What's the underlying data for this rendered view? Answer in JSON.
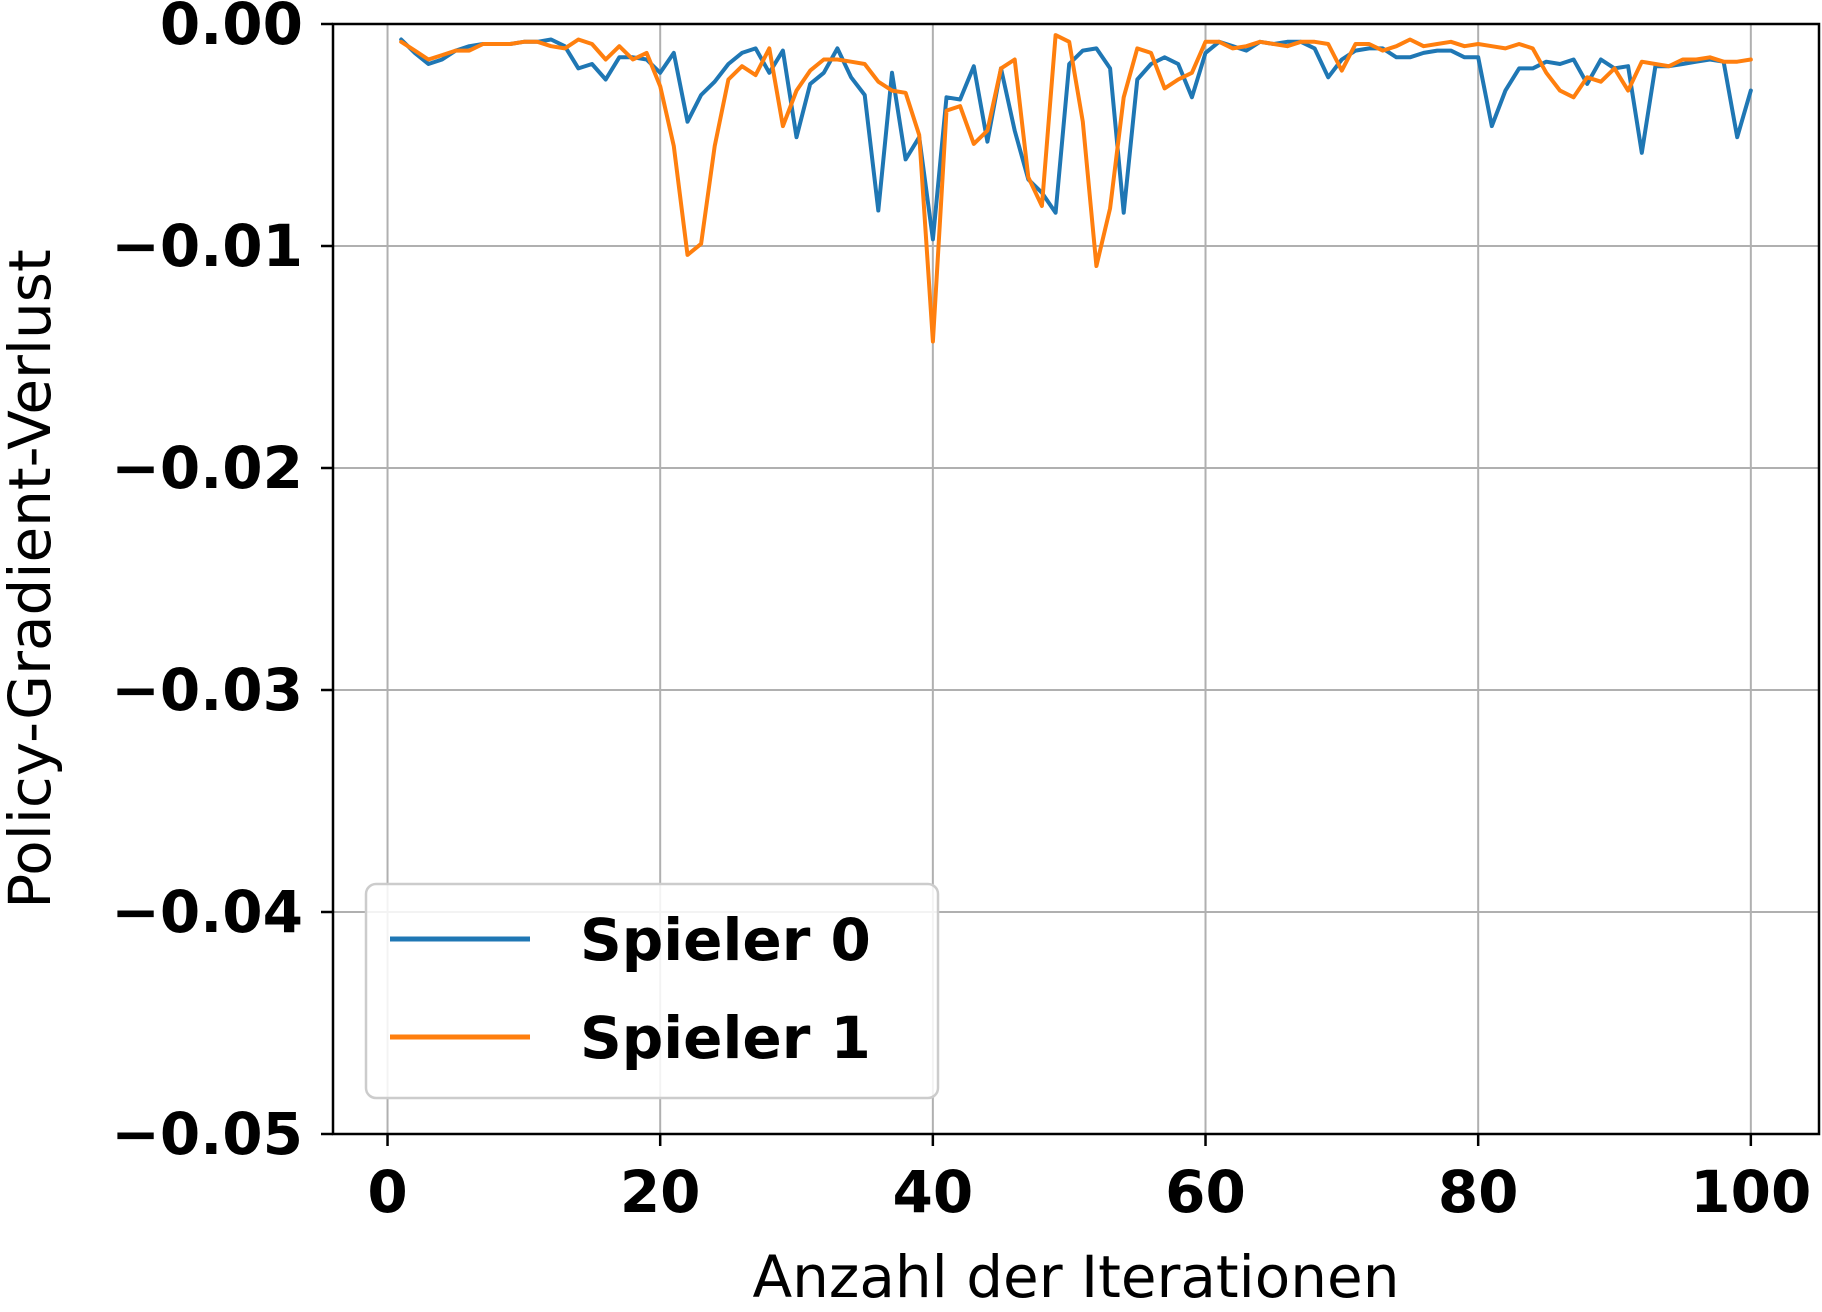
{
  "chart_data": {
    "type": "line",
    "xlabel": "Anzahl der Iterationen",
    "ylabel": "Policy-Gradient-Verlust",
    "xlim": [
      -4,
      105
    ],
    "ylim": [
      -0.05,
      0.0
    ],
    "x_ticks": [
      0,
      20,
      40,
      60,
      80,
      100
    ],
    "x_tick_labels": [
      "0",
      "20",
      "40",
      "60",
      "80",
      "100"
    ],
    "y_ticks": [
      0.0,
      -0.01,
      -0.02,
      -0.03,
      -0.04,
      -0.05
    ],
    "y_tick_labels": [
      "0.00",
      "−0.01",
      "−0.02",
      "−0.03",
      "−0.04",
      "−0.05"
    ],
    "grid": true,
    "legend_position": "lower-left",
    "colors": {
      "series0": "#1f77b4",
      "series1": "#ff7f0e"
    },
    "x": [
      1,
      2,
      3,
      4,
      5,
      6,
      7,
      8,
      9,
      10,
      11,
      12,
      13,
      14,
      15,
      16,
      17,
      18,
      19,
      20,
      21,
      22,
      23,
      24,
      25,
      26,
      27,
      28,
      29,
      30,
      31,
      32,
      33,
      34,
      35,
      36,
      37,
      38,
      39,
      40,
      41,
      42,
      43,
      44,
      45,
      46,
      47,
      48,
      49,
      50,
      51,
      52,
      53,
      54,
      55,
      56,
      57,
      58,
      59,
      60,
      61,
      62,
      63,
      64,
      65,
      66,
      67,
      68,
      69,
      70,
      71,
      72,
      73,
      74,
      75,
      76,
      77,
      78,
      79,
      80,
      81,
      82,
      83,
      84,
      85,
      86,
      87,
      88,
      89,
      90,
      91,
      92,
      93,
      94,
      95,
      96,
      97,
      98,
      99,
      100
    ],
    "series": [
      {
        "name": "Spieler 0",
        "values": [
          -0.0007,
          -0.0013,
          -0.0018,
          -0.0016,
          -0.0012,
          -0.001,
          -0.0009,
          -0.0009,
          -0.0009,
          -0.0008,
          -0.0008,
          -0.0007,
          -0.001,
          -0.002,
          -0.0018,
          -0.0025,
          -0.0015,
          -0.0015,
          -0.0016,
          -0.0022,
          -0.0013,
          -0.0044,
          -0.0032,
          -0.0026,
          -0.0018,
          -0.0013,
          -0.0011,
          -0.0022,
          -0.0012,
          -0.0051,
          -0.0027,
          -0.0022,
          -0.0011,
          -0.0024,
          -0.0032,
          -0.0084,
          -0.0022,
          -0.0061,
          -0.0051,
          -0.0097,
          -0.0033,
          -0.0034,
          -0.0019,
          -0.0053,
          -0.002,
          -0.0048,
          -0.007,
          -0.0076,
          -0.0085,
          -0.0018,
          -0.0012,
          -0.0011,
          -0.002,
          -0.0085,
          -0.0025,
          -0.0018,
          -0.0015,
          -0.0018,
          -0.0033,
          -0.0013,
          -0.0008,
          -0.001,
          -0.0012,
          -0.0008,
          -0.0009,
          -0.0008,
          -0.0008,
          -0.0011,
          -0.0024,
          -0.0016,
          -0.0012,
          -0.0011,
          -0.0011,
          -0.0015,
          -0.0015,
          -0.0013,
          -0.0012,
          -0.0012,
          -0.0015,
          -0.0015,
          -0.0046,
          -0.003,
          -0.002,
          -0.002,
          -0.0017,
          -0.0018,
          -0.0016,
          -0.0027,
          -0.0016,
          -0.002,
          -0.0019,
          -0.0058,
          -0.0019,
          -0.0019,
          -0.0018,
          -0.0017,
          -0.0016,
          -0.0017,
          -0.0051,
          -0.003
        ]
      },
      {
        "name": "Spieler 1",
        "values": [
          -0.0008,
          -0.0012,
          -0.0016,
          -0.0014,
          -0.0012,
          -0.0012,
          -0.0009,
          -0.0009,
          -0.0009,
          -0.0008,
          -0.0008,
          -0.001,
          -0.0011,
          -0.0007,
          -0.0009,
          -0.0016,
          -0.001,
          -0.0016,
          -0.0013,
          -0.0028,
          -0.0055,
          -0.0104,
          -0.0099,
          -0.0055,
          -0.0025,
          -0.0019,
          -0.0023,
          -0.0011,
          -0.0046,
          -0.003,
          -0.0021,
          -0.0016,
          -0.0016,
          -0.0017,
          -0.0018,
          -0.0026,
          -0.003,
          -0.0031,
          -0.005,
          -0.0143,
          -0.0039,
          -0.0037,
          -0.0054,
          -0.0048,
          -0.002,
          -0.0016,
          -0.0069,
          -0.0082,
          -0.0005,
          -0.0008,
          -0.0044,
          -0.0109,
          -0.0083,
          -0.0033,
          -0.0011,
          -0.0013,
          -0.0029,
          -0.0025,
          -0.0022,
          -0.0008,
          -0.0008,
          -0.0011,
          -0.001,
          -0.0008,
          -0.0009,
          -0.001,
          -0.0008,
          -0.0008,
          -0.0009,
          -0.0021,
          -0.0009,
          -0.0009,
          -0.0012,
          -0.001,
          -0.0007,
          -0.001,
          -0.0009,
          -0.0008,
          -0.001,
          -0.0009,
          -0.001,
          -0.0011,
          -0.0009,
          -0.0011,
          -0.0022,
          -0.003,
          -0.0033,
          -0.0024,
          -0.0026,
          -0.002,
          -0.003,
          -0.0017,
          -0.0018,
          -0.0019,
          -0.0016,
          -0.0016,
          -0.0015,
          -0.0017,
          -0.0017,
          -0.0016
        ]
      }
    ]
  }
}
